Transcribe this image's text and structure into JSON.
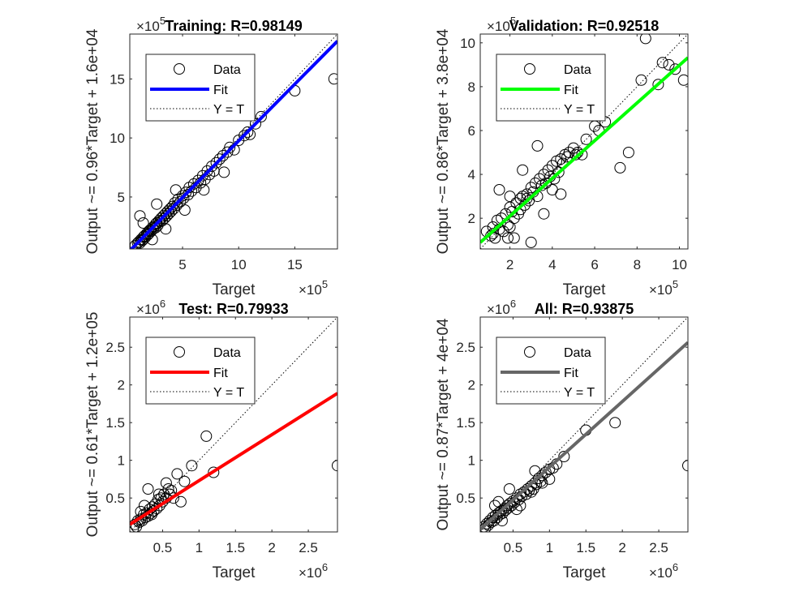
{
  "chart_data": [
    {
      "type": "scatter",
      "title": "Training: R=0.98149",
      "xlabel": "Target",
      "ylabel": "Output ~= 0.96*Target + 1.6e+04",
      "x_multiplier": "×10^5",
      "y_multiplier": "×10^5",
      "xlim": [
        0.3,
        18.8
      ],
      "ylim": [
        0.6,
        18.8
      ],
      "xticks": [
        "5",
        "10",
        "15"
      ],
      "xtick_values": [
        5,
        10,
        15
      ],
      "yticks": [
        "5",
        "10",
        "15"
      ],
      "ytick_values": [
        5,
        10,
        15
      ],
      "fit_color": "#0000ff",
      "fit": {
        "slope": 0.96,
        "intercept": 0.16
      },
      "legend": [
        "Data",
        "Fit",
        "Y = T"
      ],
      "series": [
        {
          "name": "Data",
          "x": [
            0.8,
            1.0,
            1.1,
            1.2,
            1.3,
            1.4,
            1.5,
            1.5,
            1.6,
            1.7,
            1.8,
            1.9,
            2.0,
            2.0,
            2.1,
            2.2,
            2.3,
            2.4,
            2.5,
            2.6,
            2.6,
            2.7,
            2.8,
            2.9,
            3.0,
            3.1,
            3.2,
            3.3,
            3.4,
            3.5,
            3.6,
            3.7,
            3.8,
            3.9,
            4.0,
            4.1,
            4.2,
            4.3,
            4.5,
            4.6,
            4.8,
            5.0,
            5.1,
            5.3,
            5.5,
            5.6,
            5.8,
            6.0,
            6.2,
            6.4,
            6.6,
            6.8,
            7.0,
            7.2,
            7.4,
            7.6,
            7.8,
            8.0,
            8.3,
            8.6,
            9.0,
            9.2,
            9.6,
            10.0,
            10.5,
            10.8,
            11.0,
            11.5,
            12.0,
            15.0,
            18.5,
            1.2,
            2.3,
            3.5,
            1.5,
            4.4,
            5.2,
            6.9,
            2.7,
            8.7
          ],
          "y": [
            0.9,
            1.1,
            1.2,
            1.1,
            1.4,
            1.3,
            1.6,
            1.4,
            1.7,
            1.6,
            1.9,
            1.8,
            2.1,
            1.9,
            2.2,
            2.1,
            2.4,
            2.3,
            2.5,
            2.7,
            2.4,
            2.8,
            2.6,
            3.0,
            2.9,
            3.2,
            3.0,
            3.4,
            3.2,
            3.6,
            3.4,
            3.8,
            3.6,
            4.0,
            3.8,
            4.2,
            4.0,
            4.5,
            4.3,
            4.8,
            4.6,
            5.1,
            4.9,
            5.4,
            5.2,
            5.8,
            5.5,
            6.1,
            5.8,
            6.4,
            6.2,
            6.8,
            6.5,
            7.2,
            6.9,
            7.6,
            7.2,
            7.9,
            8.2,
            8.5,
            8.8,
            9.2,
            9.0,
            9.8,
            10.2,
            10.5,
            10.3,
            11.2,
            11.8,
            14.0,
            15.0,
            3.4,
            1.4,
            2.3,
            2.8,
            5.6,
            3.9,
            5.6,
            4.4,
            7.1
          ]
        }
      ]
    },
    {
      "type": "scatter",
      "title": "Validation: R=0.92518",
      "xlabel": "Target",
      "ylabel": "Output ~= 0.86*Target + 3.8e+04",
      "x_multiplier": "×10^5",
      "y_multiplier": "×10^5",
      "xlim": [
        0.6,
        10.4
      ],
      "ylim": [
        0.6,
        10.4
      ],
      "xticks": [
        "2",
        "4",
        "6",
        "8",
        "10"
      ],
      "xtick_values": [
        2,
        4,
        6,
        8,
        10
      ],
      "yticks": [
        "2",
        "4",
        "6",
        "8",
        "10"
      ],
      "ytick_values": [
        2,
        4,
        6,
        8,
        10
      ],
      "fit_color": "#00ff00",
      "fit": {
        "slope": 0.86,
        "intercept": 0.38
      },
      "legend": [
        "Data",
        "Fit",
        "Y = T"
      ],
      "series": [
        {
          "name": "Data",
          "x": [
            0.9,
            1.1,
            1.2,
            1.3,
            1.4,
            1.5,
            1.6,
            1.7,
            1.8,
            1.9,
            2.0,
            2.0,
            2.1,
            2.2,
            2.3,
            2.4,
            2.5,
            2.5,
            2.6,
            2.7,
            2.8,
            2.9,
            3.0,
            3.1,
            3.2,
            3.3,
            3.4,
            3.5,
            3.6,
            3.7,
            3.8,
            3.9,
            4.0,
            4.1,
            4.2,
            4.3,
            4.4,
            4.5,
            4.6,
            4.7,
            4.8,
            5.0,
            5.2,
            5.4,
            5.6,
            6.0,
            6.5,
            7.2,
            7.6,
            8.2,
            8.4,
            9.0,
            9.2,
            9.5,
            9.8,
            10.2,
            1.5,
            2.2,
            3.0,
            1.2,
            2.8,
            3.6,
            4.4,
            2.0,
            1.9,
            2.6,
            3.3,
            5.1,
            4.0,
            6.2
          ],
          "y": [
            1.4,
            1.2,
            1.6,
            1.1,
            1.9,
            1.5,
            2.0,
            1.4,
            2.2,
            1.7,
            2.5,
            1.6,
            2.3,
            2.0,
            2.7,
            2.2,
            2.9,
            2.4,
            3.0,
            2.6,
            3.1,
            2.8,
            3.4,
            3.2,
            3.6,
            3.0,
            3.8,
            3.5,
            4.0,
            3.6,
            4.2,
            3.9,
            4.4,
            3.8,
            4.6,
            4.1,
            4.7,
            4.5,
            4.9,
            4.8,
            5.0,
            5.2,
            5.0,
            4.9,
            5.6,
            6.2,
            6.4,
            4.3,
            5.0,
            8.3,
            10.2,
            8.1,
            9.1,
            9.0,
            8.8,
            8.3,
            3.3,
            1.1,
            0.9,
            1.3,
            2.9,
            2.2,
            3.1,
            3.0,
            1.1,
            4.2,
            5.3,
            4.9,
            3.3,
            6.0
          ]
        }
      ]
    },
    {
      "type": "scatter",
      "title": "Test: R=0.79933",
      "xlabel": "Target",
      "ylabel": "Output ~= 0.61*Target + 1.2e+05",
      "x_multiplier": "×10^6",
      "y_multiplier": "×10^6",
      "xlim": [
        0.05,
        2.9
      ],
      "ylim": [
        0.05,
        2.9
      ],
      "xticks": [
        "0.5",
        "1",
        "1.5",
        "2",
        "2.5"
      ],
      "xtick_values": [
        0.5,
        1,
        1.5,
        2,
        2.5
      ],
      "yticks": [
        "0.5",
        "1",
        "1.5",
        "2",
        "2.5"
      ],
      "ytick_values": [
        0.5,
        1,
        1.5,
        2,
        2.5
      ],
      "fit_color": "#ff0000",
      "fit": {
        "slope": 0.61,
        "intercept": 0.12
      },
      "legend": [
        "Data",
        "Fit",
        "Y = T"
      ],
      "series": [
        {
          "name": "Data",
          "x": [
            0.1,
            0.12,
            0.14,
            0.16,
            0.18,
            0.2,
            0.22,
            0.24,
            0.26,
            0.28,
            0.3,
            0.32,
            0.34,
            0.36,
            0.38,
            0.4,
            0.42,
            0.44,
            0.46,
            0.48,
            0.5,
            0.52,
            0.55,
            0.58,
            0.6,
            0.62,
            0.65,
            0.7,
            0.75,
            0.8,
            0.9,
            1.1,
            1.2,
            2.9,
            0.25,
            0.35,
            0.45,
            0.3,
            0.2,
            0.55
          ],
          "y": [
            0.1,
            0.15,
            0.12,
            0.2,
            0.18,
            0.22,
            0.2,
            0.28,
            0.24,
            0.3,
            0.26,
            0.35,
            0.3,
            0.38,
            0.33,
            0.42,
            0.36,
            0.48,
            0.4,
            0.5,
            0.45,
            0.55,
            0.5,
            0.62,
            0.55,
            0.6,
            0.5,
            0.82,
            0.45,
            0.72,
            0.93,
            1.32,
            0.84,
            0.93,
            0.4,
            0.28,
            0.55,
            0.62,
            0.32,
            0.7
          ]
        }
      ]
    },
    {
      "type": "scatter",
      "title": "All: R=0.93875",
      "xlabel": "Target",
      "ylabel": "Output ~= 0.87*Target + 4e+04",
      "x_multiplier": "×10^6",
      "y_multiplier": "×10^6",
      "xlim": [
        0.05,
        2.9
      ],
      "ylim": [
        0.05,
        2.9
      ],
      "xticks": [
        "0.5",
        "1",
        "1.5",
        "2",
        "2.5"
      ],
      "xtick_values": [
        0.5,
        1,
        1.5,
        2,
        2.5
      ],
      "yticks": [
        "0.5",
        "1",
        "1.5",
        "2",
        "2.5"
      ],
      "ytick_values": [
        0.5,
        1,
        1.5,
        2,
        2.5
      ],
      "fit_color": "#666666",
      "fit": {
        "slope": 0.87,
        "intercept": 0.04
      },
      "legend": [
        "Data",
        "Fit",
        "Y = T"
      ],
      "series": [
        {
          "name": "Data",
          "x": [
            0.1,
            0.12,
            0.14,
            0.16,
            0.18,
            0.2,
            0.22,
            0.24,
            0.26,
            0.28,
            0.3,
            0.32,
            0.34,
            0.36,
            0.38,
            0.4,
            0.42,
            0.44,
            0.46,
            0.48,
            0.5,
            0.52,
            0.55,
            0.58,
            0.6,
            0.62,
            0.65,
            0.68,
            0.7,
            0.72,
            0.75,
            0.78,
            0.8,
            0.82,
            0.85,
            0.88,
            0.9,
            0.95,
            1.0,
            1.05,
            1.1,
            1.2,
            1.5,
            1.9,
            2.9,
            0.3,
            0.45,
            0.6,
            0.75,
            0.9,
            0.35,
            0.55,
            0.25,
            0.8,
            1.0
          ],
          "y": [
            0.12,
            0.1,
            0.16,
            0.14,
            0.2,
            0.18,
            0.24,
            0.2,
            0.27,
            0.24,
            0.3,
            0.28,
            0.33,
            0.3,
            0.36,
            0.34,
            0.4,
            0.37,
            0.43,
            0.4,
            0.46,
            0.44,
            0.5,
            0.48,
            0.55,
            0.52,
            0.58,
            0.55,
            0.62,
            0.6,
            0.66,
            0.62,
            0.7,
            0.68,
            0.76,
            0.72,
            0.8,
            0.84,
            0.88,
            0.9,
            0.95,
            1.05,
            1.4,
            1.5,
            0.93,
            0.45,
            0.62,
            0.4,
            0.58,
            0.7,
            0.2,
            0.35,
            0.4,
            0.86,
            0.75
          ]
        }
      ]
    }
  ]
}
